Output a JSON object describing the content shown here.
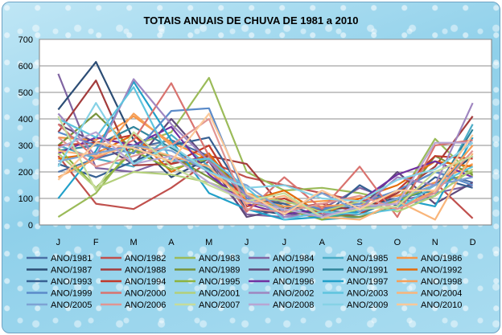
{
  "chart_data": {
    "type": "line",
    "title": "TOTAIS ANUAIS DE CHUVA DE 1981 a 2010",
    "xlabel": "",
    "ylabel": "",
    "categories": [
      "J",
      "F",
      "M",
      "A",
      "M",
      "J",
      "J",
      "A",
      "S",
      "O",
      "N",
      "D"
    ],
    "ylim": [
      0,
      700
    ],
    "yticks": [
      0,
      100,
      200,
      300,
      400,
      500,
      600,
      700
    ],
    "grid": true,
    "legend_position": "bottom",
    "series": [
      {
        "name": "ANO/1981",
        "color": "#4a6fa5",
        "values": [
          200,
          250,
          290,
          320,
          260,
          120,
          60,
          30,
          40,
          130,
          200,
          160
        ]
      },
      {
        "name": "ANO/1982",
        "color": "#c0504d",
        "values": [
          260,
          80,
          60,
          140,
          240,
          180,
          150,
          120,
          90,
          110,
          160,
          25
        ]
      },
      {
        "name": "ANO/1983",
        "color": "#9bbb59",
        "values": [
          30,
          120,
          300,
          350,
          555,
          200,
          130,
          140,
          120,
          90,
          325,
          185
        ]
      },
      {
        "name": "ANO/1984",
        "color": "#8064a2",
        "values": [
          570,
          215,
          200,
          250,
          210,
          40,
          30,
          60,
          140,
          90,
          120,
          150
        ]
      },
      {
        "name": "ANO/1985",
        "color": "#4bacc6",
        "values": [
          300,
          250,
          220,
          340,
          220,
          90,
          70,
          20,
          30,
          70,
          110,
          380
        ]
      },
      {
        "name": "ANO/1986",
        "color": "#f79646",
        "values": [
          330,
          320,
          410,
          310,
          250,
          120,
          80,
          90,
          100,
          110,
          160,
          230
        ]
      },
      {
        "name": "ANO/1987",
        "color": "#2c4d75",
        "values": [
          435,
          615,
          320,
          180,
          250,
          60,
          40,
          55,
          70,
          100,
          150,
          260
        ]
      },
      {
        "name": "ANO/1988",
        "color": "#a33b3b",
        "values": [
          350,
          545,
          225,
          230,
          260,
          230,
          60,
          80,
          50,
          120,
          220,
          410
        ]
      },
      {
        "name": "ANO/1989",
        "color": "#77933c",
        "values": [
          300,
          420,
          280,
          260,
          180,
          90,
          50,
          40,
          30,
          70,
          260,
          190
        ]
      },
      {
        "name": "ANO/1990",
        "color": "#5f497a",
        "values": [
          380,
          310,
          230,
          400,
          240,
          30,
          60,
          30,
          60,
          200,
          80,
          160
        ]
      },
      {
        "name": "ANO/1991",
        "color": "#31859c",
        "values": [
          280,
          300,
          370,
          290,
          210,
          110,
          70,
          60,
          40,
          100,
          130,
          360
        ]
      },
      {
        "name": "ANO/1992",
        "color": "#e46c0a",
        "values": [
          250,
          270,
          340,
          200,
          270,
          90,
          130,
          40,
          100,
          150,
          240,
          220
        ]
      },
      {
        "name": "ANO/1993",
        "color": "#376092",
        "values": [
          230,
          180,
          240,
          300,
          330,
          100,
          80,
          30,
          150,
          70,
          180,
          140
        ]
      },
      {
        "name": "ANO/1994",
        "color": "#c0392b",
        "values": [
          300,
          310,
          340,
          230,
          300,
          70,
          100,
          40,
          40,
          130,
          260,
          250
        ]
      },
      {
        "name": "ANO/1995",
        "color": "#8db33f",
        "values": [
          290,
          140,
          280,
          210,
          250,
          110,
          60,
          20,
          60,
          90,
          150,
          200
        ]
      },
      {
        "name": "ANO/1996",
        "color": "#7030a0",
        "values": [
          270,
          330,
          300,
          370,
          190,
          80,
          40,
          60,
          90,
          190,
          240,
          180
        ]
      },
      {
        "name": "ANO/1997",
        "color": "#21a0c9",
        "values": [
          100,
          280,
          540,
          320,
          120,
          60,
          20,
          30,
          50,
          100,
          70,
          330
        ]
      },
      {
        "name": "ANO/1998",
        "color": "#f5a05a",
        "values": [
          180,
          250,
          420,
          300,
          200,
          100,
          70,
          70,
          80,
          60,
          130,
          300
        ]
      },
      {
        "name": "ANO/1999",
        "color": "#5b8bc9",
        "values": [
          350,
          300,
          270,
          430,
          440,
          100,
          90,
          60,
          80,
          130,
          200,
          150
        ]
      },
      {
        "name": "ANO/2000",
        "color": "#d9736f",
        "values": [
          380,
          250,
          320,
          535,
          260,
          50,
          180,
          60,
          220,
          30,
          300,
          320
        ]
      },
      {
        "name": "ANO/2001",
        "color": "#b3cf7a",
        "values": [
          270,
          140,
          200,
          190,
          160,
          110,
          90,
          50,
          90,
          50,
          110,
          210
        ]
      },
      {
        "name": "ANO/2002",
        "color": "#9f86c0",
        "values": [
          420,
          260,
          550,
          380,
          240,
          110,
          30,
          40,
          60,
          180,
          150,
          460
        ]
      },
      {
        "name": "ANO/2003",
        "color": "#5fc4de",
        "values": [
          400,
          330,
          520,
          240,
          250,
          140,
          20,
          50,
          40,
          60,
          150,
          220
        ]
      },
      {
        "name": "ANO/2004",
        "color": "#f9b57a",
        "values": [
          280,
          260,
          300,
          260,
          220,
          80,
          110,
          30,
          20,
          90,
          20,
          270
        ]
      },
      {
        "name": "ANO/2005",
        "color": "#7ea3d4",
        "values": [
          240,
          270,
          300,
          280,
          200,
          150,
          50,
          120,
          50,
          100,
          150,
          180
        ]
      },
      {
        "name": "ANO/2006",
        "color": "#e19592",
        "values": [
          330,
          220,
          260,
          300,
          400,
          60,
          50,
          80,
          110,
          60,
          120,
          280
        ]
      },
      {
        "name": "ANO/2007",
        "color": "#c6dc9b",
        "values": [
          410,
          130,
          350,
          220,
          150,
          90,
          120,
          30,
          60,
          70,
          200,
          260
        ]
      },
      {
        "name": "ANO/2008",
        "color": "#b8a6d3",
        "values": [
          290,
          350,
          230,
          260,
          160,
          90,
          60,
          30,
          70,
          80,
          310,
          310
        ]
      },
      {
        "name": "ANO/2009",
        "color": "#86d2e6",
        "values": [
          220,
          460,
          230,
          300,
          200,
          140,
          150,
          100,
          90,
          170,
          210,
          310
        ]
      },
      {
        "name": "ANO/2010",
        "color": "#fbc899",
        "values": [
          170,
          310,
          290,
          240,
          420,
          120,
          40,
          130,
          60,
          130,
          130,
          340
        ]
      }
    ]
  }
}
